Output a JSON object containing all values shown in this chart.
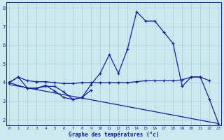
{
  "xlabel": "Graphe des températures (°c)",
  "background_color": "#cce9f0",
  "grid_color": "#aacdd8",
  "line_color": "#1a1aaa",
  "hours": [
    0,
    1,
    2,
    3,
    4,
    5,
    6,
    7,
    8,
    9,
    10,
    11,
    12,
    13,
    14,
    15,
    16,
    17,
    18,
    19,
    20,
    21,
    22,
    23
  ],
  "curve_main": [
    4.0,
    4.3,
    3.7,
    3.7,
    3.8,
    3.8,
    3.5,
    3.1,
    3.2,
    3.9,
    4.5,
    5.5,
    4.5,
    5.8,
    7.8,
    7.3,
    7.3,
    6.7,
    6.1,
    3.8,
    4.3,
    4.3,
    3.1,
    1.8
  ],
  "curve_flat": [
    4.0,
    4.3,
    4.1,
    4.05,
    4.05,
    4.0,
    3.95,
    3.95,
    4.0,
    4.0,
    4.0,
    4.0,
    4.0,
    4.0,
    4.05,
    4.1,
    4.1,
    4.1,
    4.1,
    4.15,
    4.3,
    4.3,
    4.1,
    null
  ],
  "curve_short": [
    4.0,
    null,
    3.7,
    3.7,
    3.85,
    3.55,
    3.2,
    3.1,
    3.2,
    3.6,
    null,
    null,
    null,
    null,
    null,
    null,
    null,
    null,
    null,
    null,
    null,
    null,
    null,
    null
  ],
  "curve_decline_x": [
    0,
    23
  ],
  "curve_decline_y": [
    3.9,
    1.8
  ],
  "ylim": [
    1.7,
    8.3
  ],
  "xlim": [
    -0.3,
    23.3
  ]
}
